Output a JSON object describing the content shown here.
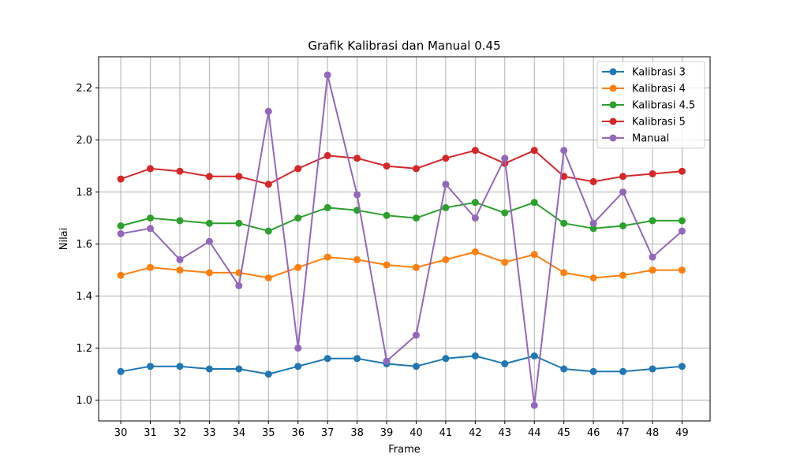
{
  "chart_data": {
    "type": "line",
    "title": "Grafik Kalibrasi dan Manual 0.45",
    "xlabel": "Frame",
    "ylabel": "Nilai",
    "x": [
      30,
      31,
      32,
      33,
      34,
      35,
      36,
      37,
      38,
      39,
      40,
      41,
      42,
      43,
      44,
      45,
      46,
      47,
      48,
      49
    ],
    "xlim": [
      29.25,
      49.95
    ],
    "ylim": [
      0.92,
      2.32
    ],
    "yticks": [
      1.0,
      1.2,
      1.4,
      1.6,
      1.8,
      2.0,
      2.2
    ],
    "ytick_labels": [
      "1.0",
      "1.2",
      "1.4",
      "1.6",
      "1.8",
      "2.0",
      "2.2"
    ],
    "grid": true,
    "legend_position": "top-right",
    "series": [
      {
        "name": "Kalibrasi 3",
        "color": "#1f77b4",
        "values": [
          1.11,
          1.13,
          1.13,
          1.12,
          1.12,
          1.1,
          1.13,
          1.16,
          1.16,
          1.14,
          1.13,
          1.16,
          1.17,
          1.14,
          1.17,
          1.12,
          1.11,
          1.11,
          1.12,
          1.13
        ]
      },
      {
        "name": "Kalibrasi 4",
        "color": "#ff7f0e",
        "values": [
          1.48,
          1.51,
          1.5,
          1.49,
          1.49,
          1.47,
          1.51,
          1.55,
          1.54,
          1.52,
          1.51,
          1.54,
          1.57,
          1.53,
          1.56,
          1.49,
          1.47,
          1.48,
          1.5,
          1.5
        ]
      },
      {
        "name": "Kalibrasi 4.5",
        "color": "#2ca02c",
        "values": [
          1.67,
          1.7,
          1.69,
          1.68,
          1.68,
          1.65,
          1.7,
          1.74,
          1.73,
          1.71,
          1.7,
          1.74,
          1.76,
          1.72,
          1.76,
          1.68,
          1.66,
          1.67,
          1.69,
          1.69
        ]
      },
      {
        "name": "Kalibrasi 5",
        "color": "#d62728",
        "values": [
          1.85,
          1.89,
          1.88,
          1.86,
          1.86,
          1.83,
          1.89,
          1.94,
          1.93,
          1.9,
          1.89,
          1.93,
          1.96,
          1.91,
          1.96,
          1.86,
          1.84,
          1.86,
          1.87,
          1.88
        ]
      },
      {
        "name": "Manual",
        "color": "#9467bd",
        "values": [
          1.64,
          1.66,
          1.54,
          1.61,
          1.44,
          2.11,
          1.2,
          2.25,
          1.79,
          1.15,
          1.25,
          1.83,
          1.7,
          1.93,
          0.98,
          1.96,
          1.68,
          1.8,
          1.55,
          1.65
        ]
      }
    ]
  }
}
